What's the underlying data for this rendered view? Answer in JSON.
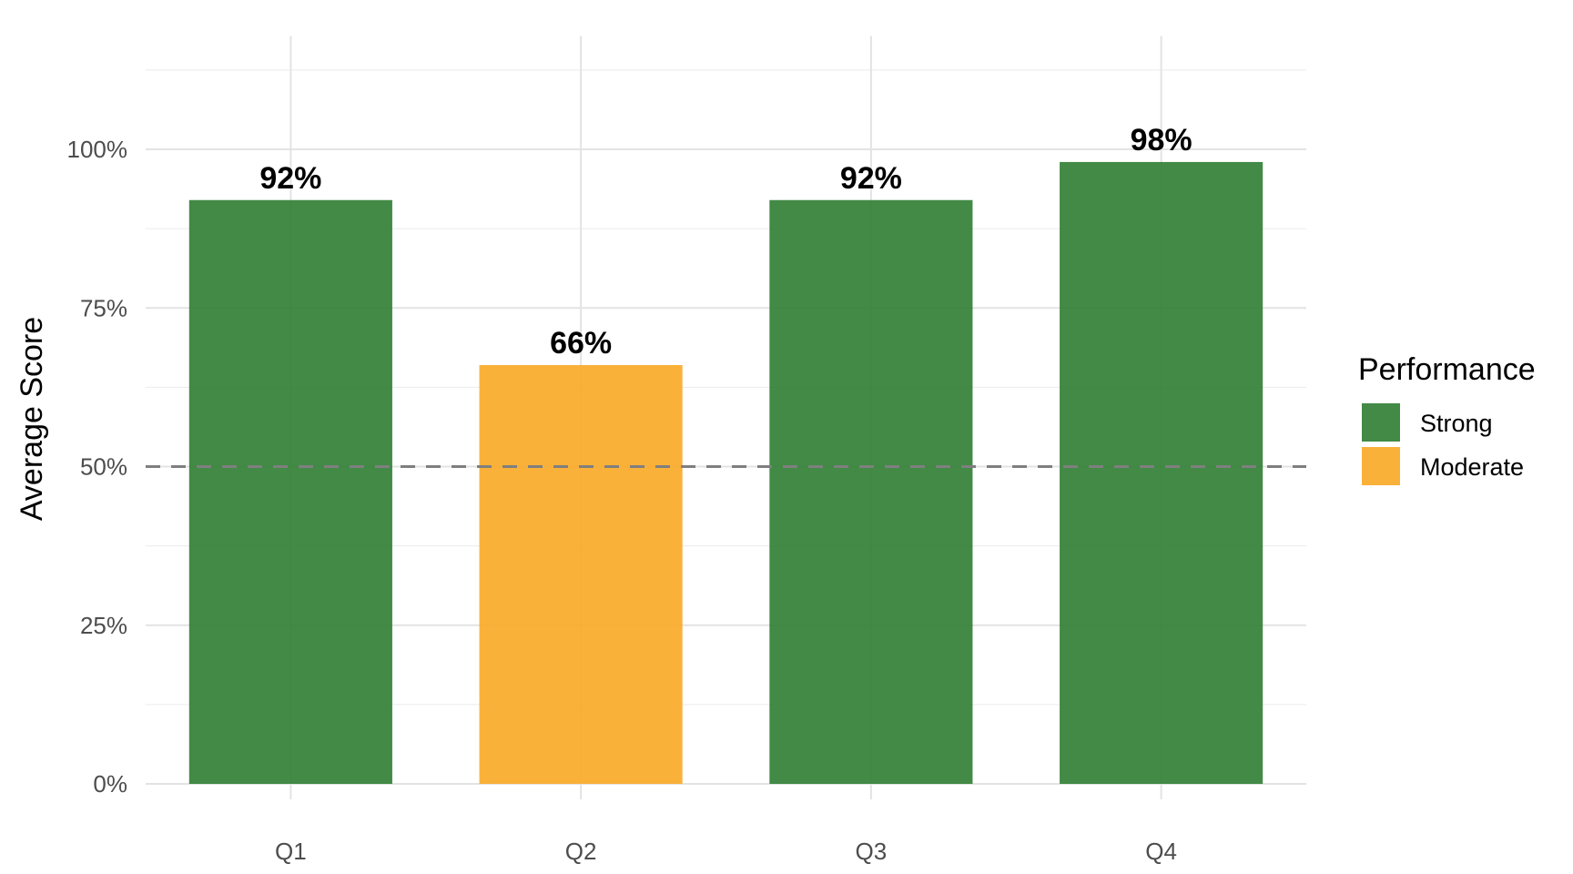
{
  "chart_data": {
    "type": "bar",
    "categories": [
      "Q1",
      "Q2",
      "Q3",
      "Q4"
    ],
    "values": [
      92,
      66,
      92,
      98
    ],
    "value_labels": [
      "92%",
      "66%",
      "92%",
      "98%"
    ],
    "bar_groups": [
      "Strong",
      "Moderate",
      "Strong",
      "Strong"
    ],
    "title": "",
    "xlabel": "",
    "ylabel": "Average Score",
    "ylim": [
      0,
      115
    ],
    "yticks": [
      0,
      25,
      50,
      75,
      100
    ],
    "ytick_labels": [
      "0%",
      "25%",
      "50%",
      "75%",
      "100%"
    ],
    "reference_line": {
      "value": 50,
      "style": "dashed",
      "color": "#7f7f7f"
    },
    "grid": true,
    "legend": {
      "title": "Performance",
      "position": "right",
      "entries": [
        {
          "label": "Strong",
          "color": "#2e7d32"
        },
        {
          "label": "Moderate",
          "color": "#f9a825"
        }
      ]
    },
    "colors": {
      "Strong": "#2e7d32",
      "Moderate": "#f9a825"
    }
  }
}
